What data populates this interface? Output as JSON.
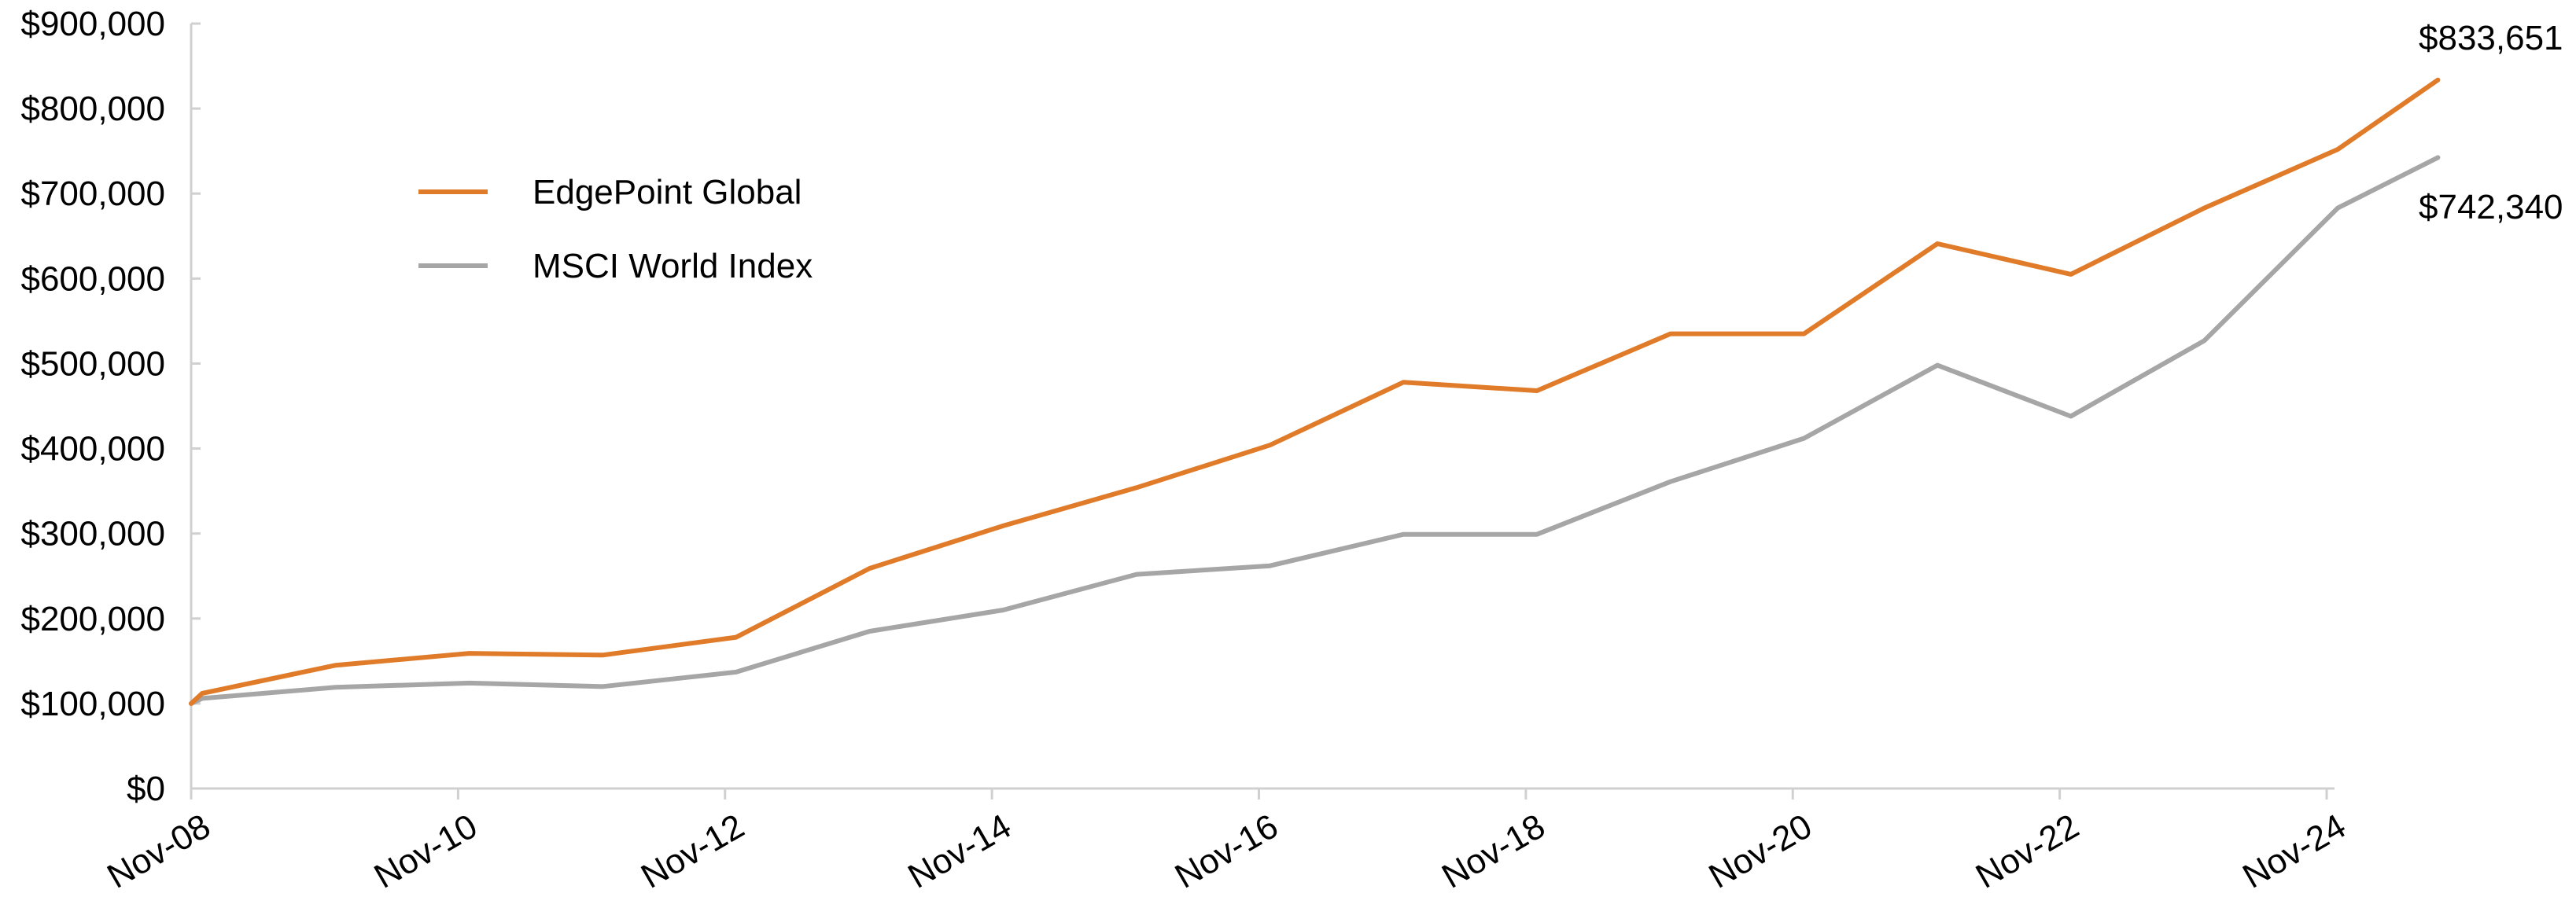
{
  "chart_data": {
    "type": "line",
    "title": "",
    "xlabel": "",
    "ylabel": "",
    "ylim": [
      0,
      900000
    ],
    "x_range": [
      "Nov-08",
      "Nov-24"
    ],
    "grid": false,
    "legend_position": "upper-left",
    "y_ticks": [
      {
        "value": 0,
        "label": "$0"
      },
      {
        "value": 100000,
        "label": "$100,000"
      },
      {
        "value": 200000,
        "label": "$200,000"
      },
      {
        "value": 300000,
        "label": "$300,000"
      },
      {
        "value": 400000,
        "label": "$400,000"
      },
      {
        "value": 500000,
        "label": "$500,000"
      },
      {
        "value": 600000,
        "label": "$600,000"
      },
      {
        "value": 700000,
        "label": "$700,000"
      },
      {
        "value": 800000,
        "label": "$800,000"
      },
      {
        "value": 900000,
        "label": "$900,000"
      }
    ],
    "x_ticks": [
      {
        "value": "Nov-08",
        "label": "Nov-08"
      },
      {
        "value": "Nov-10",
        "label": "Nov-10"
      },
      {
        "value": "Nov-12",
        "label": "Nov-12"
      },
      {
        "value": "Nov-14",
        "label": "Nov-14"
      },
      {
        "value": "Nov-16",
        "label": "Nov-16"
      },
      {
        "value": "Nov-18",
        "label": "Nov-18"
      },
      {
        "value": "Nov-20",
        "label": "Nov-20"
      },
      {
        "value": "Nov-22",
        "label": "Nov-22"
      },
      {
        "value": "Nov-24",
        "label": "Nov-24"
      }
    ],
    "series": [
      {
        "name": "EdgePoint Global",
        "color": "#e07b2a",
        "points": [
          {
            "x": "Nov-08",
            "y": 100000
          },
          {
            "x": "Dec-08",
            "y": 112000
          },
          {
            "x": "Dec-09",
            "y": 145000
          },
          {
            "x": "Dec-10",
            "y": 159000
          },
          {
            "x": "Dec-11",
            "y": 157000
          },
          {
            "x": "Dec-12",
            "y": 178000
          },
          {
            "x": "Dec-13",
            "y": 259000
          },
          {
            "x": "Dec-14",
            "y": 309000
          },
          {
            "x": "Dec-15",
            "y": 354000
          },
          {
            "x": "Dec-16",
            "y": 404000
          },
          {
            "x": "Dec-17",
            "y": 478000
          },
          {
            "x": "Dec-18",
            "y": 468000
          },
          {
            "x": "Dec-19",
            "y": 535000
          },
          {
            "x": "Dec-20",
            "y": 535000
          },
          {
            "x": "Dec-21",
            "y": 641000
          },
          {
            "x": "Dec-22",
            "y": 605000
          },
          {
            "x": "Dec-23",
            "y": 683000
          },
          {
            "x": "Dec-24",
            "y": 752000
          },
          {
            "x": "Sep-25",
            "y": 833651
          }
        ],
        "end_label": "$833,651"
      },
      {
        "name": "MSCI World Index",
        "color": "#a6a6a6",
        "points": [
          {
            "x": "Nov-08",
            "y": 100000
          },
          {
            "x": "Dec-08",
            "y": 106000
          },
          {
            "x": "Dec-09",
            "y": 119000
          },
          {
            "x": "Dec-10",
            "y": 124000
          },
          {
            "x": "Dec-11",
            "y": 120000
          },
          {
            "x": "Dec-12",
            "y": 137000
          },
          {
            "x": "Dec-13",
            "y": 185000
          },
          {
            "x": "Dec-14",
            "y": 210000
          },
          {
            "x": "Dec-15",
            "y": 252000
          },
          {
            "x": "Dec-16",
            "y": 262000
          },
          {
            "x": "Dec-17",
            "y": 299000
          },
          {
            "x": "Dec-18",
            "y": 299000
          },
          {
            "x": "Dec-19",
            "y": 361000
          },
          {
            "x": "Dec-20",
            "y": 412000
          },
          {
            "x": "Dec-21",
            "y": 498000
          },
          {
            "x": "Dec-22",
            "y": 438000
          },
          {
            "x": "Dec-23",
            "y": 527000
          },
          {
            "x": "Dec-24",
            "y": 683000
          },
          {
            "x": "Sep-25",
            "y": 742340
          }
        ],
        "end_label": "$742,340"
      }
    ]
  }
}
